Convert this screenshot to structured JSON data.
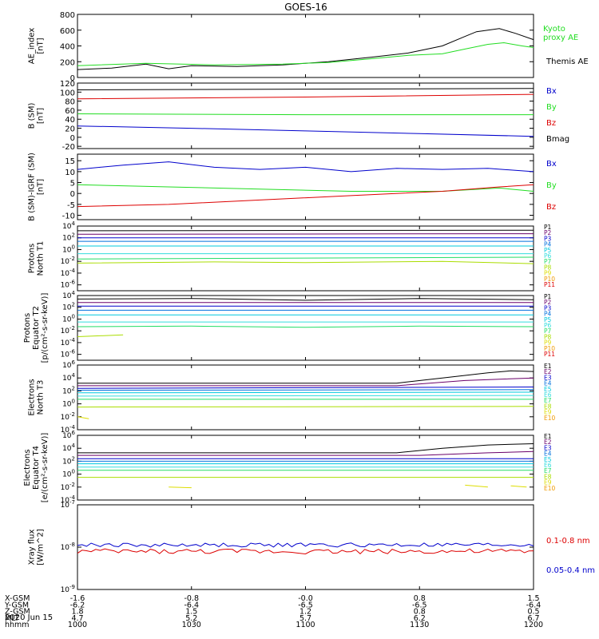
{
  "title": "GOES-16",
  "date_label": "2020 Jun 15",
  "orbit": {
    "row_labels": [
      "X-GSM",
      "Y-GSM",
      "Z-GSM",
      "MLT",
      "hhmm"
    ],
    "columns": [
      [
        "-1.6",
        "-6.2",
        "1.8",
        "4.7",
        "1000"
      ],
      [
        "-0.8",
        "-6.4",
        "1.5",
        "5.2",
        "1030"
      ],
      [
        "-0.0",
        "-6.5",
        "1.2",
        "5.7",
        "1100"
      ],
      [
        "0.8",
        "-6.5",
        "0.8",
        "6.2",
        "1130"
      ],
      [
        "1.5",
        "-6.4",
        "0.5",
        "6.7",
        "1200"
      ]
    ]
  },
  "colors": {
    "black": "#000000",
    "blue": "#0000cc",
    "green": "#22dd22",
    "red": "#dd0000",
    "ch": [
      "#000000",
      "#6a006a",
      "#0000cc",
      "#0070dd",
      "#00c8dd",
      "#33dddd",
      "#22dd66",
      "#aadd00",
      "#dddd00",
      "#ee9900",
      "#dd0000"
    ]
  },
  "chart_data": [
    {
      "type": "line",
      "ylabel": [
        "AE_index",
        "[nT]"
      ],
      "y_scale": "linear",
      "ylim": [
        0,
        800
      ],
      "ytick_labels": [
        "0",
        "200",
        "400",
        "600",
        "800"
      ],
      "x_hours": [
        10.0,
        12.0
      ],
      "legend": [
        "Kyoto",
        "proxy AE",
        "Themis AE"
      ],
      "series": [
        {
          "name": "Themis AE",
          "color": "black",
          "x": [
            10.0,
            10.15,
            10.3,
            10.4,
            10.5,
            10.7,
            10.9,
            11.1,
            11.3,
            11.45,
            11.6,
            11.7,
            11.75,
            11.85,
            11.92,
            12.0
          ],
          "y": [
            100,
            120,
            170,
            110,
            150,
            140,
            160,
            200,
            260,
            310,
            400,
            520,
            580,
            620,
            560,
            480
          ]
        },
        {
          "name": "proxy AE",
          "color": "green",
          "x": [
            10.0,
            10.3,
            10.6,
            10.9,
            11.1,
            11.3,
            11.45,
            11.6,
            11.7,
            11.8,
            11.87,
            11.95,
            12.0
          ],
          "y": [
            150,
            180,
            160,
            170,
            190,
            240,
            280,
            300,
            360,
            420,
            440,
            400,
            380
          ]
        }
      ]
    },
    {
      "type": "line",
      "ylabel": [
        "B (SM)",
        "[nT]"
      ],
      "y_scale": "linear",
      "ylim": [
        -25,
        120
      ],
      "ytick_labels": [
        "-20",
        "0",
        "20",
        "40",
        "60",
        "80",
        "100",
        "120"
      ],
      "x_hours": [
        10.0,
        12.0
      ],
      "legend": [
        "Bx",
        "By",
        "Bz",
        "Bmag"
      ],
      "series": [
        {
          "name": "Bmag",
          "color": "black",
          "x": [
            10.0,
            12.0
          ],
          "y": [
            105,
            108
          ]
        },
        {
          "name": "Bz",
          "color": "red",
          "x": [
            10.0,
            11.0,
            12.0
          ],
          "y": [
            85,
            89,
            95
          ]
        },
        {
          "name": "By",
          "color": "green",
          "x": [
            10.0,
            11.0,
            12.0
          ],
          "y": [
            52,
            50,
            50
          ]
        },
        {
          "name": "Bx",
          "color": "blue",
          "x": [
            10.0,
            10.5,
            11.0,
            11.5,
            12.0
          ],
          "y": [
            25,
            20,
            14,
            8,
            2
          ]
        }
      ]
    },
    {
      "type": "line",
      "ylabel": [
        "B (SM)-IGRF (SM)",
        "[nT]"
      ],
      "y_scale": "linear",
      "ylim": [
        -12,
        18
      ],
      "ytick_labels": [
        "-10",
        "-5",
        "0",
        "5",
        "10",
        "15"
      ],
      "x_hours": [
        10.0,
        12.0
      ],
      "legend": [
        "Bx",
        "By",
        "Bz"
      ],
      "series": [
        {
          "name": "Bx",
          "color": "blue",
          "x": [
            10.0,
            10.2,
            10.4,
            10.6,
            10.8,
            11.0,
            11.2,
            11.4,
            11.6,
            11.8,
            12.0
          ],
          "y": [
            11,
            13,
            14.5,
            12,
            11,
            12,
            10,
            11.5,
            11,
            11.5,
            10
          ]
        },
        {
          "name": "By",
          "color": "green",
          "x": [
            10.0,
            10.4,
            10.8,
            11.2,
            11.6,
            11.85,
            12.0
          ],
          "y": [
            4,
            3,
            2,
            1,
            1,
            2.5,
            1
          ]
        },
        {
          "name": "Bz",
          "color": "red",
          "x": [
            10.0,
            10.4,
            10.8,
            11.2,
            11.6,
            11.85,
            12.0
          ],
          "y": [
            -6,
            -5,
            -3,
            -1,
            1,
            3,
            4
          ]
        }
      ]
    },
    {
      "type": "line",
      "ylabel": [
        "Protons",
        "North T1"
      ],
      "y_scale": "log",
      "ylim": [
        -7,
        4
      ],
      "ytick_labels": [
        "10^4",
        "10^2",
        "10^0",
        "10^-2",
        "10^-4",
        "10^-6"
      ],
      "x_hours": [
        10.0,
        12.0
      ],
      "legend": [
        "P1",
        "P2",
        "P3",
        "P4",
        "P5",
        "P6",
        "P7",
        "P8",
        "P9",
        "P10",
        "P11"
      ],
      "series_log10": [
        {
          "name": "P1",
          "x": [
            10.0,
            12.0
          ],
          "y": [
            3.2,
            3.3
          ]
        },
        {
          "name": "P2",
          "x": [
            10.0,
            12.0
          ],
          "y": [
            2.6,
            2.7
          ]
        },
        {
          "name": "P3",
          "x": [
            10.0,
            12.0
          ],
          "y": [
            2.0,
            2.0
          ]
        },
        {
          "name": "P4",
          "x": [
            10.0,
            12.0
          ],
          "y": [
            1.4,
            1.4
          ]
        },
        {
          "name": "P5",
          "x": [
            10.0,
            12.0
          ],
          "y": [
            0.6,
            0.6
          ]
        },
        {
          "name": "P6",
          "x": [
            10.0,
            12.0
          ],
          "y": [
            -0.7,
            -0.7
          ]
        },
        {
          "name": "P7",
          "x": [
            10.0,
            12.0
          ],
          "y": [
            -1.6,
            -1.3
          ]
        },
        {
          "name": "P8",
          "x": [
            10.0,
            10.6,
            11.0,
            11.6,
            12.0
          ],
          "y": [
            -2.3,
            -2.1,
            -2.2,
            -2.0,
            -2.4
          ]
        }
      ]
    },
    {
      "type": "line",
      "ylabel": [
        "Protons",
        "Equator T2",
        "[p/(cm²-s-sr-keV)]"
      ],
      "y_scale": "log",
      "ylim": [
        -7,
        4
      ],
      "ytick_labels": [
        "10^4",
        "10^2",
        "10^0",
        "10^-2",
        "10^-4",
        "10^-6"
      ],
      "x_hours": [
        10.0,
        12.0
      ],
      "legend": [
        "P1",
        "P2",
        "P3",
        "P4",
        "P5",
        "P6",
        "P7",
        "P8",
        "P9",
        "P10",
        "P11"
      ],
      "series_log10": [
        {
          "name": "P1",
          "x": [
            10.0,
            10.5,
            11.0,
            11.5,
            12.0
          ],
          "y": [
            3.4,
            3.5,
            3.2,
            3.5,
            3.3
          ]
        },
        {
          "name": "P2",
          "x": [
            10.0,
            12.0
          ],
          "y": [
            2.8,
            2.8
          ]
        },
        {
          "name": "P3",
          "x": [
            10.0,
            12.0
          ],
          "y": [
            2.2,
            2.2
          ]
        },
        {
          "name": "P4",
          "x": [
            10.0,
            12.0
          ],
          "y": [
            1.5,
            1.5
          ]
        },
        {
          "name": "P5",
          "x": [
            10.0,
            12.0
          ],
          "y": [
            0.7,
            0.7
          ]
        },
        {
          "name": "P6",
          "x": [
            10.0,
            12.0
          ],
          "y": [
            -0.5,
            -0.5
          ]
        },
        {
          "name": "P7",
          "x": [
            10.0,
            10.5,
            11.0,
            11.5,
            12.0
          ],
          "y": [
            -1.3,
            -1.2,
            -1.4,
            -1.2,
            -1.3
          ]
        },
        {
          "name": "P8",
          "x": [
            10.0,
            10.2
          ],
          "y": [
            -3.0,
            -2.7
          ]
        }
      ]
    },
    {
      "type": "line",
      "ylabel": [
        "Electrons",
        "North T3"
      ],
      "y_scale": "log",
      "ylim": [
        -4,
        6
      ],
      "ytick_labels": [
        "10^6",
        "10^4",
        "10^2",
        "10^0",
        "10^-2",
        "10^-4"
      ],
      "x_hours": [
        10.0,
        12.0
      ],
      "legend": [
        "E1",
        "E2",
        "E3",
        "E4",
        "E5",
        "E6",
        "E7",
        "E8",
        "E9",
        "E10"
      ],
      "series_log10": [
        {
          "name": "E1",
          "x": [
            10.0,
            11.4,
            11.6,
            11.8,
            11.9,
            12.0
          ],
          "y": [
            3.2,
            3.2,
            4.0,
            4.8,
            5.1,
            5.0
          ]
        },
        {
          "name": "E2",
          "x": [
            10.0,
            11.4,
            11.7,
            12.0
          ],
          "y": [
            2.8,
            2.8,
            3.6,
            4.0
          ]
        },
        {
          "name": "E3",
          "x": [
            10.0,
            12.0
          ],
          "y": [
            2.4,
            2.6
          ]
        },
        {
          "name": "E4",
          "x": [
            10.0,
            12.0
          ],
          "y": [
            2.1,
            2.2
          ]
        },
        {
          "name": "E5",
          "x": [
            10.0,
            12.0
          ],
          "y": [
            1.7,
            1.8
          ]
        },
        {
          "name": "E6",
          "x": [
            10.0,
            12.0
          ],
          "y": [
            1.2,
            1.3
          ]
        },
        {
          "name": "E7",
          "x": [
            10.0,
            12.0
          ],
          "y": [
            0.7,
            0.7
          ]
        },
        {
          "name": "E8",
          "x": [
            10.0,
            12.0
          ],
          "y": [
            -0.5,
            -0.4
          ]
        },
        {
          "name": "E9",
          "x": [
            10.0,
            10.05
          ],
          "y": [
            -2.0,
            -2.3
          ]
        }
      ]
    },
    {
      "type": "line",
      "ylabel": [
        "Electrons",
        "Equator T4",
        "[e/(cm²-s-sr-keV)]"
      ],
      "y_scale": "log",
      "ylim": [
        -4,
        6
      ],
      "ytick_labels": [
        "10^6",
        "10^4",
        "10^2",
        "10^0",
        "10^-2",
        "10^-4"
      ],
      "x_hours": [
        10.0,
        12.0
      ],
      "legend": [
        "E1",
        "E2",
        "E3",
        "E4",
        "E5",
        "E6",
        "E7",
        "E8",
        "E9",
        "E10"
      ],
      "series_log10": [
        {
          "name": "E1",
          "x": [
            10.0,
            11.4,
            11.6,
            11.8,
            12.0
          ],
          "y": [
            3.3,
            3.3,
            4.0,
            4.5,
            4.7
          ]
        },
        {
          "name": "E2",
          "x": [
            10.0,
            11.5,
            11.8,
            12.0
          ],
          "y": [
            2.9,
            2.9,
            3.3,
            3.5
          ]
        },
        {
          "name": "E3",
          "x": [
            10.0,
            12.0
          ],
          "y": [
            2.4,
            2.4
          ]
        },
        {
          "name": "E4",
          "x": [
            10.0,
            12.0
          ],
          "y": [
            2.0,
            2.0
          ]
        },
        {
          "name": "E5",
          "x": [
            10.0,
            12.0
          ],
          "y": [
            1.6,
            1.6
          ]
        },
        {
          "name": "E6",
          "x": [
            10.0,
            12.0
          ],
          "y": [
            1.1,
            1.1
          ]
        },
        {
          "name": "E7",
          "x": [
            10.0,
            12.0
          ],
          "y": [
            0.6,
            0.6
          ]
        },
        {
          "name": "E8",
          "x": [
            10.0,
            12.0
          ],
          "y": [
            -0.5,
            -0.5
          ]
        },
        {
          "name": "E9",
          "x": [
            10.4,
            10.5
          ],
          "y": [
            -2.0,
            -2.1
          ]
        },
        {
          "name": "E9",
          "x": [
            11.7,
            11.8
          ],
          "y": [
            -1.7,
            -2.0
          ]
        },
        {
          "name": "E9",
          "x": [
            11.9,
            11.97
          ],
          "y": [
            -1.8,
            -2.0
          ]
        }
      ]
    },
    {
      "type": "line",
      "ylabel": [
        "Xray flux",
        "[W/m^2]"
      ],
      "y_scale": "log",
      "ylim": [
        -9,
        -7
      ],
      "ytick_labels": [
        "10^-7",
        "10^-8",
        "10^-9"
      ],
      "x_hours": [
        10.0,
        12.0
      ],
      "legend": [
        "0.1-0.8 nm",
        "0.05-0.4 nm"
      ],
      "series_log10": [
        {
          "name": "0.05-0.4 nm",
          "color": "blue",
          "x": [
            10.0,
            12.0
          ],
          "y_mean": -7.95,
          "jitter": 0.05
        },
        {
          "name": "0.1-0.8 nm",
          "color": "red",
          "x": [
            10.0,
            12.0
          ],
          "y_mean": -8.1,
          "jitter": 0.06
        }
      ]
    }
  ]
}
